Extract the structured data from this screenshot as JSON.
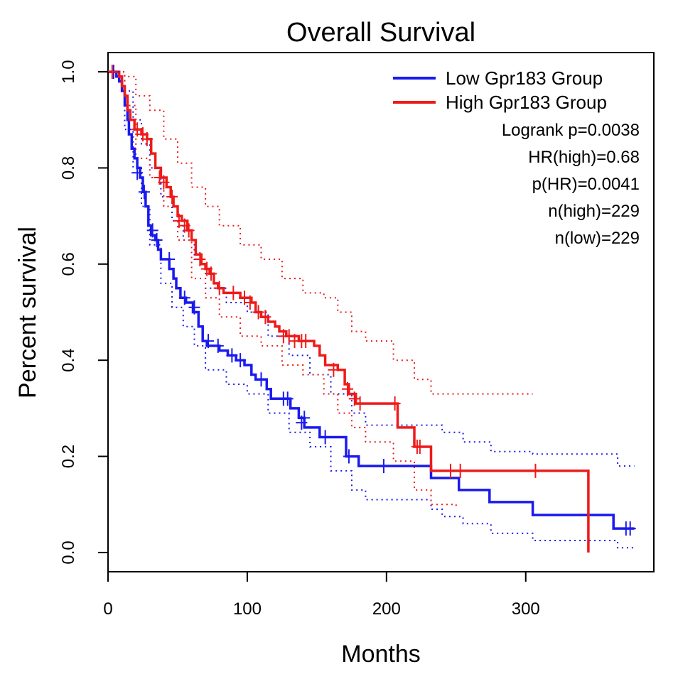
{
  "chart_data": {
    "type": "line",
    "subtype": "kaplan-meier",
    "title": "Overall Survival",
    "xlabel": "Months",
    "ylabel": "Percent survival",
    "xlim": [
      0,
      392
    ],
    "ylim": [
      -0.04,
      1.04
    ],
    "xticks": [
      0,
      100,
      200,
      300
    ],
    "yticks": [
      0.0,
      0.2,
      0.4,
      0.6,
      0.8,
      1.0
    ],
    "xtick_labels": [
      "0",
      "100",
      "200",
      "300"
    ],
    "ytick_labels": [
      "0.0",
      "0.2",
      "0.4",
      "0.6",
      "0.8",
      "1.0"
    ],
    "grid": false,
    "legend_position": "top-right",
    "series": [
      {
        "name": "Low Gpr183 Group",
        "color": "#1a1aee",
        "steps": [
          [
            0,
            1.0
          ],
          [
            6,
            0.99
          ],
          [
            8,
            0.98
          ],
          [
            10,
            0.96
          ],
          [
            12,
            0.93
          ],
          [
            14,
            0.9
          ],
          [
            15,
            0.87
          ],
          [
            17,
            0.84
          ],
          [
            19,
            0.82
          ],
          [
            21,
            0.8
          ],
          [
            23,
            0.78
          ],
          [
            25,
            0.75
          ],
          [
            27,
            0.72
          ],
          [
            29,
            0.68
          ],
          [
            31,
            0.66
          ],
          [
            34,
            0.65
          ],
          [
            36,
            0.63
          ],
          [
            38,
            0.61
          ],
          [
            44,
            0.59
          ],
          [
            47,
            0.57
          ],
          [
            49,
            0.55
          ],
          [
            52,
            0.53
          ],
          [
            56,
            0.52
          ],
          [
            61,
            0.5
          ],
          [
            65,
            0.47
          ],
          [
            68,
            0.44
          ],
          [
            71,
            0.43
          ],
          [
            80,
            0.42
          ],
          [
            86,
            0.41
          ],
          [
            92,
            0.4
          ],
          [
            98,
            0.39
          ],
          [
            103,
            0.37
          ],
          [
            106,
            0.36
          ],
          [
            114,
            0.34
          ],
          [
            117,
            0.32
          ],
          [
            131,
            0.3
          ],
          [
            137,
            0.28
          ],
          [
            141,
            0.26
          ],
          [
            152,
            0.24
          ],
          [
            171,
            0.2
          ],
          [
            180,
            0.18
          ],
          [
            232,
            0.155
          ],
          [
            252,
            0.13
          ],
          [
            274,
            0.105
          ],
          [
            305,
            0.078
          ],
          [
            363,
            0.05
          ],
          [
            378,
            0.05
          ]
        ],
        "censored": [
          [
            4,
            1.0
          ],
          [
            21,
            0.79
          ],
          [
            26,
            0.75
          ],
          [
            32,
            0.67
          ],
          [
            35,
            0.65
          ],
          [
            44,
            0.61
          ],
          [
            55,
            0.53
          ],
          [
            62,
            0.51
          ],
          [
            72,
            0.44
          ],
          [
            79,
            0.43
          ],
          [
            89,
            0.41
          ],
          [
            95,
            0.4
          ],
          [
            110,
            0.36
          ],
          [
            126,
            0.32
          ],
          [
            129,
            0.32
          ],
          [
            139,
            0.27
          ],
          [
            141,
            0.28
          ],
          [
            156,
            0.24
          ],
          [
            173,
            0.2
          ],
          [
            198,
            0.18
          ],
          [
            372,
            0.05
          ],
          [
            375,
            0.05
          ]
        ],
        "ci_upper": [
          [
            0,
            1.0
          ],
          [
            12,
            0.96
          ],
          [
            18,
            0.9
          ],
          [
            24,
            0.85
          ],
          [
            30,
            0.8
          ],
          [
            38,
            0.74
          ],
          [
            46,
            0.69
          ],
          [
            54,
            0.65
          ],
          [
            62,
            0.61
          ],
          [
            70,
            0.55
          ],
          [
            85,
            0.52
          ],
          [
            100,
            0.5
          ],
          [
            115,
            0.45
          ],
          [
            130,
            0.41
          ],
          [
            145,
            0.37
          ],
          [
            160,
            0.33
          ],
          [
            175,
            0.29
          ],
          [
            185,
            0.265
          ],
          [
            232,
            0.265
          ],
          [
            240,
            0.25
          ],
          [
            255,
            0.23
          ],
          [
            275,
            0.21
          ],
          [
            305,
            0.205
          ],
          [
            363,
            0.205
          ],
          [
            366,
            0.18
          ],
          [
            378,
            0.18
          ]
        ],
        "ci_lower": [
          [
            0,
            1.0
          ],
          [
            12,
            0.88
          ],
          [
            18,
            0.8
          ],
          [
            24,
            0.72
          ],
          [
            30,
            0.64
          ],
          [
            38,
            0.56
          ],
          [
            46,
            0.51
          ],
          [
            54,
            0.47
          ],
          [
            62,
            0.43
          ],
          [
            70,
            0.38
          ],
          [
            85,
            0.35
          ],
          [
            100,
            0.33
          ],
          [
            115,
            0.29
          ],
          [
            130,
            0.25
          ],
          [
            145,
            0.22
          ],
          [
            160,
            0.17
          ],
          [
            175,
            0.13
          ],
          [
            185,
            0.11
          ],
          [
            232,
            0.09
          ],
          [
            240,
            0.075
          ],
          [
            255,
            0.06
          ],
          [
            275,
            0.04
          ],
          [
            305,
            0.025
          ],
          [
            363,
            0.025
          ],
          [
            366,
            0.01
          ],
          [
            378,
            0.01
          ]
        ]
      },
      {
        "name": "High Gpr183 Group",
        "color": "#ee1a1a",
        "steps": [
          [
            0,
            1.0
          ],
          [
            8,
            0.99
          ],
          [
            10,
            0.97
          ],
          [
            12,
            0.95
          ],
          [
            14,
            0.92
          ],
          [
            16,
            0.9
          ],
          [
            19,
            0.88
          ],
          [
            24,
            0.87
          ],
          [
            28,
            0.86
          ],
          [
            31,
            0.83
          ],
          [
            34,
            0.8
          ],
          [
            38,
            0.78
          ],
          [
            42,
            0.76
          ],
          [
            45,
            0.74
          ],
          [
            47,
            0.72
          ],
          [
            50,
            0.7
          ],
          [
            53,
            0.69
          ],
          [
            57,
            0.67
          ],
          [
            60,
            0.65
          ],
          [
            63,
            0.62
          ],
          [
            67,
            0.6
          ],
          [
            70,
            0.59
          ],
          [
            73,
            0.58
          ],
          [
            76,
            0.56
          ],
          [
            79,
            0.55
          ],
          [
            83,
            0.54
          ],
          [
            95,
            0.53
          ],
          [
            103,
            0.52
          ],
          [
            106,
            0.5
          ],
          [
            110,
            0.49
          ],
          [
            115,
            0.48
          ],
          [
            120,
            0.47
          ],
          [
            123,
            0.46
          ],
          [
            128,
            0.45
          ],
          [
            137,
            0.44
          ],
          [
            148,
            0.43
          ],
          [
            152,
            0.41
          ],
          [
            156,
            0.39
          ],
          [
            165,
            0.38
          ],
          [
            170,
            0.35
          ],
          [
            173,
            0.33
          ],
          [
            178,
            0.31
          ],
          [
            208,
            0.26
          ],
          [
            220,
            0.22
          ],
          [
            232,
            0.17
          ],
          [
            345,
            0.0
          ]
        ],
        "censored": [
          [
            3,
            1.0
          ],
          [
            21,
            0.88
          ],
          [
            25,
            0.87
          ],
          [
            28,
            0.86
          ],
          [
            37,
            0.78
          ],
          [
            40,
            0.77
          ],
          [
            46,
            0.74
          ],
          [
            51,
            0.69
          ],
          [
            55,
            0.68
          ],
          [
            58,
            0.67
          ],
          [
            66,
            0.61
          ],
          [
            71,
            0.59
          ],
          [
            74,
            0.58
          ],
          [
            80,
            0.55
          ],
          [
            90,
            0.54
          ],
          [
            98,
            0.53
          ],
          [
            102,
            0.52
          ],
          [
            108,
            0.5
          ],
          [
            113,
            0.49
          ],
          [
            126,
            0.45
          ],
          [
            130,
            0.45
          ],
          [
            134,
            0.44
          ],
          [
            139,
            0.44
          ],
          [
            142,
            0.44
          ],
          [
            162,
            0.38
          ],
          [
            172,
            0.34
          ],
          [
            177,
            0.32
          ],
          [
            181,
            0.31
          ],
          [
            206,
            0.31
          ],
          [
            222,
            0.22
          ],
          [
            224,
            0.22
          ],
          [
            246,
            0.17
          ],
          [
            253,
            0.17
          ],
          [
            307,
            0.17
          ]
        ],
        "ci_upper": [
          [
            0,
            1.0
          ],
          [
            12,
            0.99
          ],
          [
            20,
            0.95
          ],
          [
            30,
            0.92
          ],
          [
            40,
            0.86
          ],
          [
            50,
            0.81
          ],
          [
            60,
            0.76
          ],
          [
            70,
            0.72
          ],
          [
            80,
            0.68
          ],
          [
            95,
            0.64
          ],
          [
            110,
            0.61
          ],
          [
            125,
            0.57
          ],
          [
            140,
            0.54
          ],
          [
            155,
            0.53
          ],
          [
            165,
            0.5
          ],
          [
            175,
            0.46
          ],
          [
            185,
            0.44
          ],
          [
            205,
            0.4
          ],
          [
            220,
            0.36
          ],
          [
            232,
            0.33
          ],
          [
            305,
            0.33
          ]
        ],
        "ci_lower": [
          [
            0,
            1.0
          ],
          [
            12,
            0.93
          ],
          [
            20,
            0.82
          ],
          [
            30,
            0.78
          ],
          [
            40,
            0.72
          ],
          [
            50,
            0.65
          ],
          [
            60,
            0.57
          ],
          [
            70,
            0.53
          ],
          [
            80,
            0.49
          ],
          [
            95,
            0.45
          ],
          [
            110,
            0.43
          ],
          [
            125,
            0.39
          ],
          [
            140,
            0.37
          ],
          [
            155,
            0.33
          ],
          [
            165,
            0.29
          ],
          [
            175,
            0.26
          ],
          [
            185,
            0.23
          ],
          [
            205,
            0.19
          ],
          [
            220,
            0.13
          ],
          [
            232,
            0.1
          ],
          [
            250,
            0.09
          ]
        ]
      }
    ],
    "annotations": [
      "Logrank p=0.0038",
      "HR(high)=0.68",
      "p(HR)=0.0041",
      "n(high)=229",
      "n(low)=229"
    ]
  }
}
